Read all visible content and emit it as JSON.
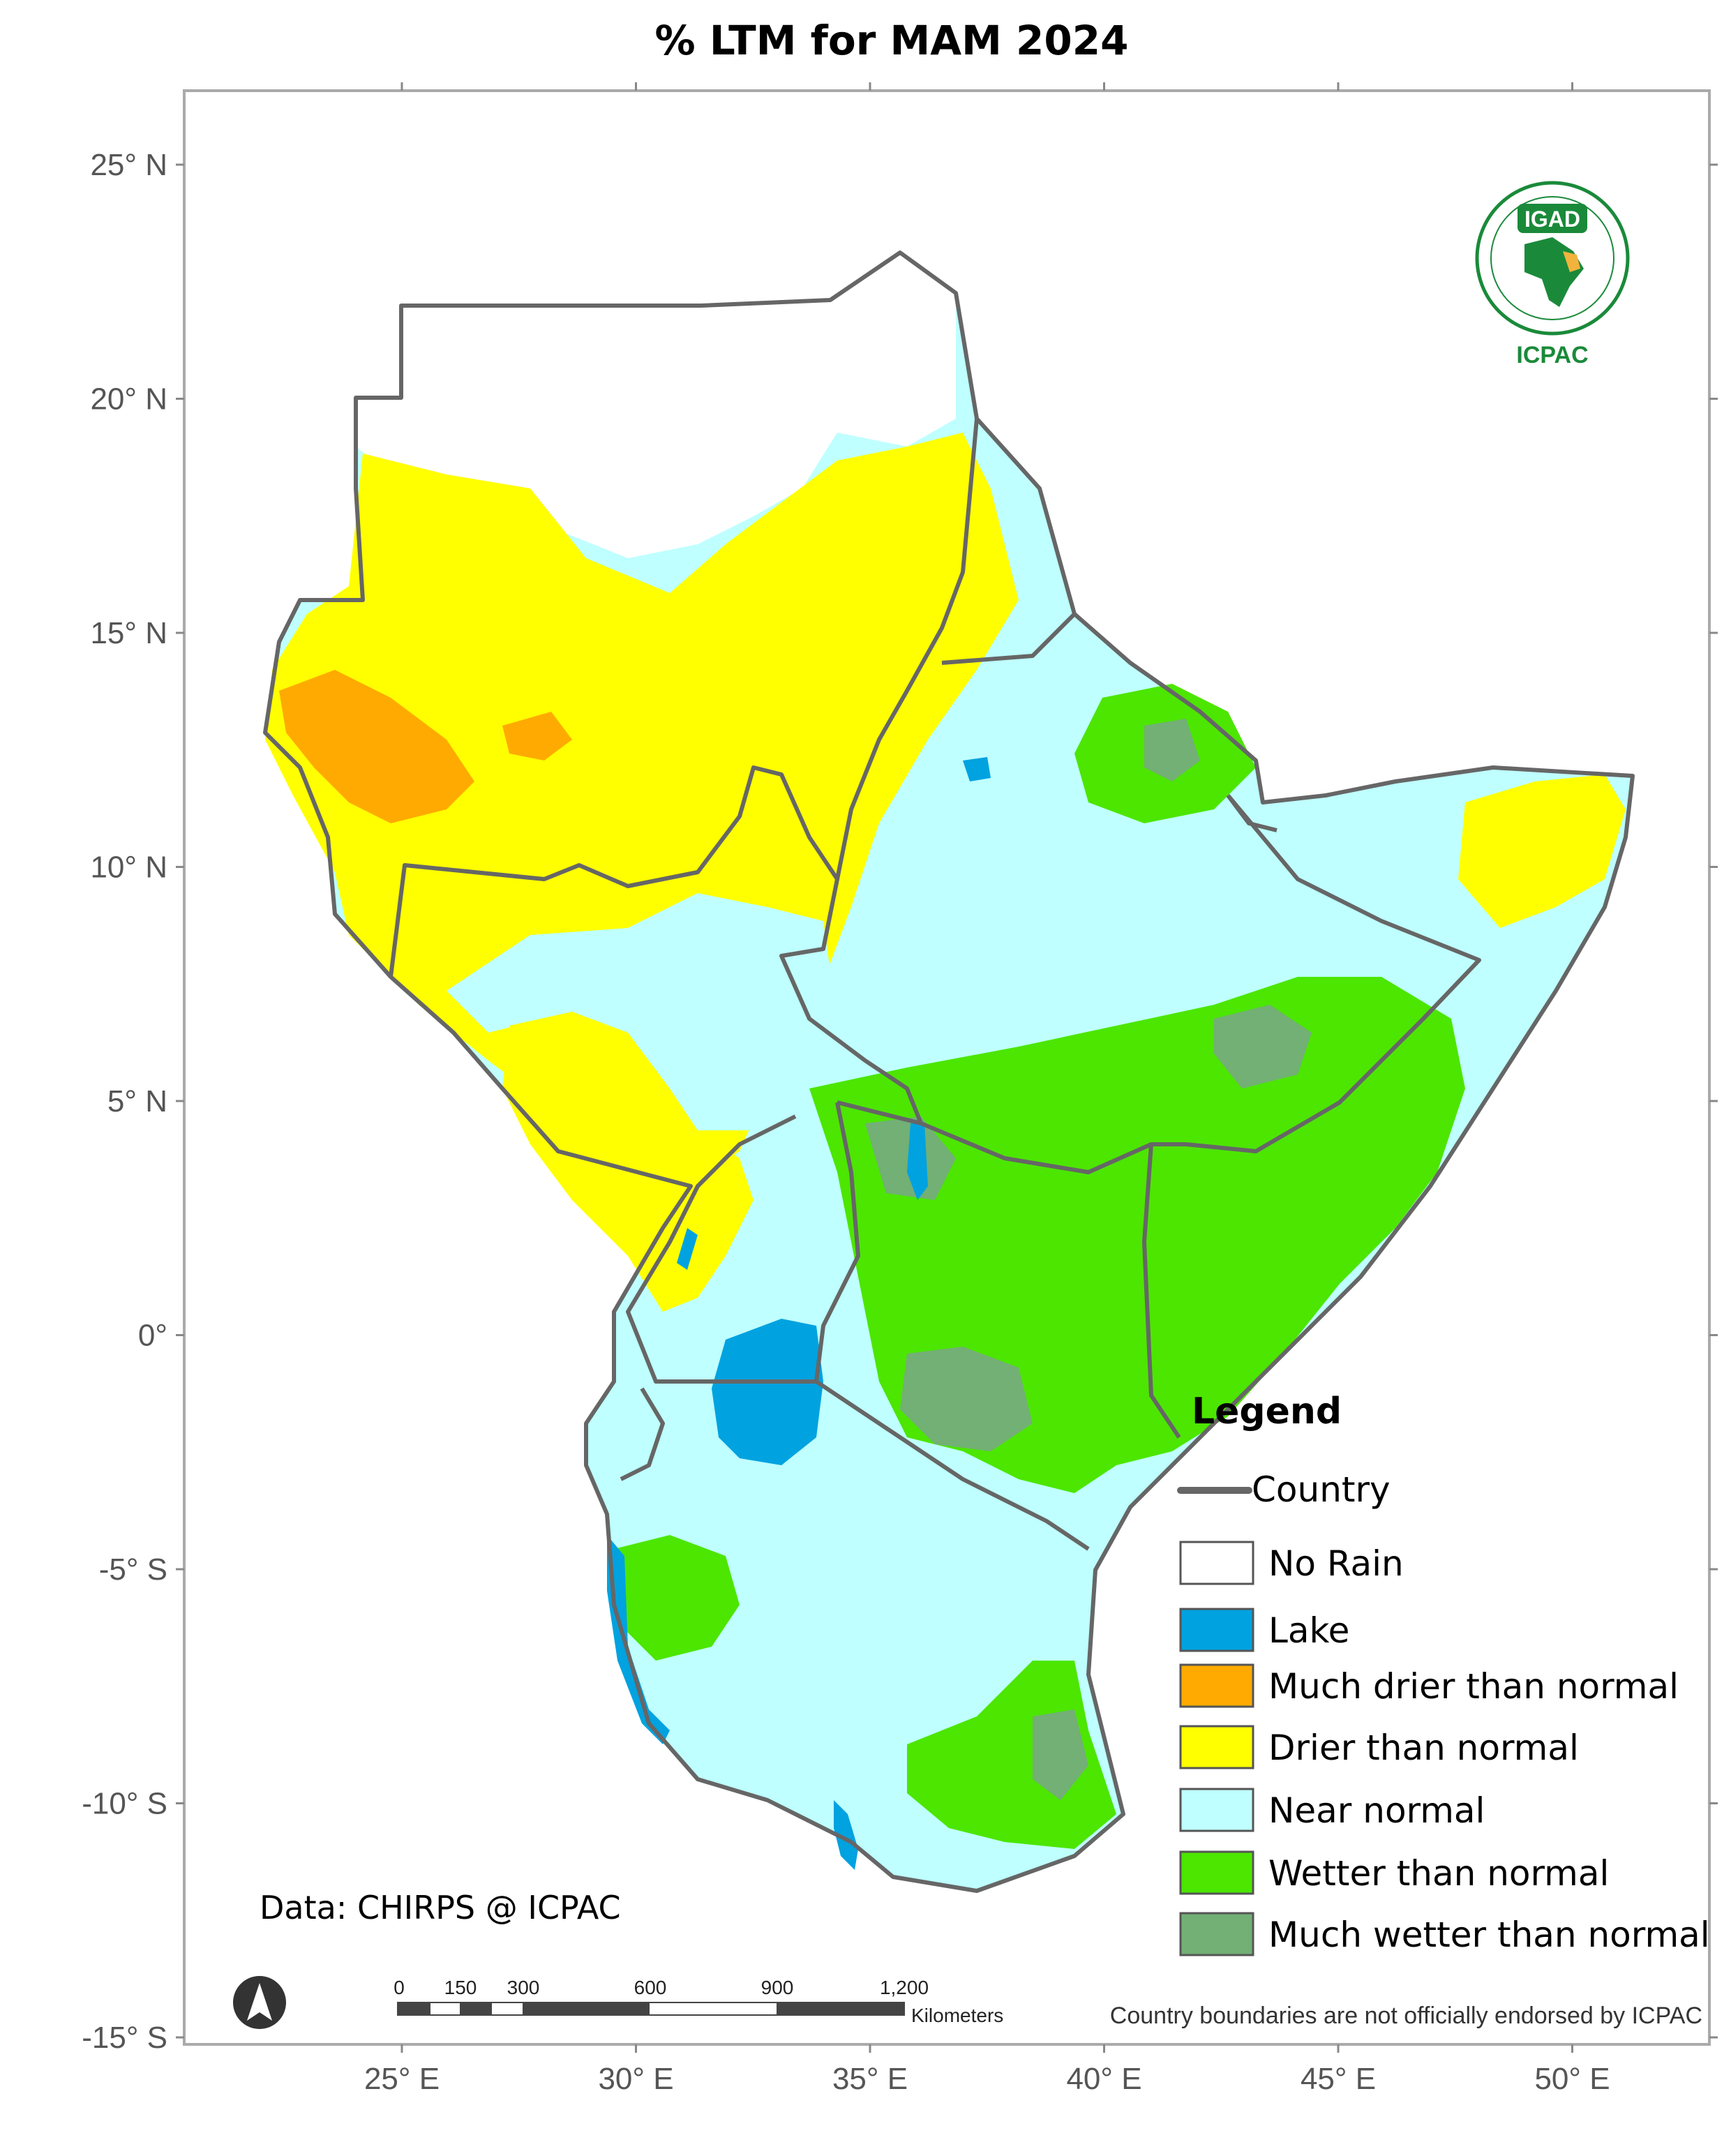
{
  "title": "% LTM  for  MAM 2024",
  "axes": {
    "y_ticks": [
      {
        "label": "25° N",
        "lat": 25
      },
      {
        "label": "20° N",
        "lat": 20
      },
      {
        "label": "15° N",
        "lat": 15
      },
      {
        "label": "10° N",
        "lat": 10
      },
      {
        "label": "5° N",
        "lat": 5
      },
      {
        "label": "0°",
        "lat": 0
      },
      {
        "label": "-5° S",
        "lat": -5
      },
      {
        "label": "-10° S",
        "lat": -10
      },
      {
        "label": "-15° S",
        "lat": -15
      }
    ],
    "x_ticks": [
      {
        "label": "25° E",
        "lon": 25
      },
      {
        "label": "30° E",
        "lon": 30
      },
      {
        "label": "35° E",
        "lon": 35
      },
      {
        "label": "40° E",
        "lon": 40
      },
      {
        "label": "45° E",
        "lon": 45
      },
      {
        "label": "50° E",
        "lon": 50
      }
    ]
  },
  "legend": {
    "title": "Legend",
    "boundary": {
      "label": "Country",
      "color": "#666666"
    },
    "classes": [
      {
        "label": "No Rain",
        "color": "#ffffff"
      },
      {
        "label": "Lake",
        "color": "#00a2e0"
      },
      {
        "label": "Much drier than normal",
        "color": "#ffaa00"
      },
      {
        "label": "Drier than normal",
        "color": "#ffff00"
      },
      {
        "label": "Near normal",
        "color": "#bfffff"
      },
      {
        "label": "Wetter than normal",
        "color": "#4ce600"
      },
      {
        "label": "Much wetter than normal",
        "color": "#72b075"
      }
    ]
  },
  "credit": "Data: CHIRPS @ ICPAC",
  "disclaimer": "Country boundaries are not officially endorsed by ICPAC",
  "scale_bar": {
    "labels": [
      "0",
      "150",
      "300",
      "600",
      "900",
      "1,200"
    ],
    "unit": "Kilometers"
  },
  "logo": {
    "top_text": "IGAD",
    "bottom_text": "ICPAC"
  },
  "north_arrow": "north-arrow-icon"
}
